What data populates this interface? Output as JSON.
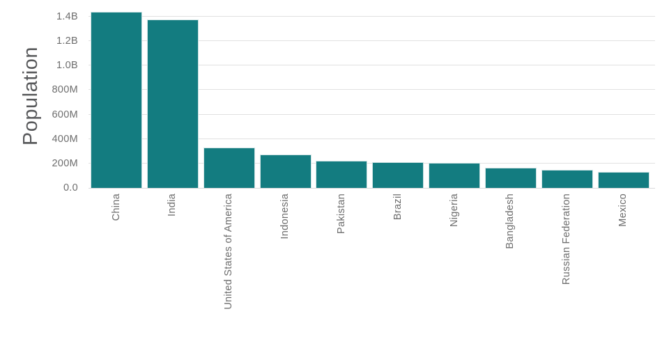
{
  "chart_data": {
    "type": "bar",
    "title": "",
    "ylabel": "Population",
    "xlabel": "",
    "categories": [
      "China",
      "India",
      "United States of America",
      "Indonesia",
      "Pakistan",
      "Brazil",
      "Nigeria",
      "Bangladesh",
      "Russian Federation",
      "Mexico"
    ],
    "series": [
      {
        "name": "Population",
        "values_millions": [
          1439,
          1380,
          331,
          273.5,
          221,
          212.5,
          206,
          164.5,
          146,
          129
        ]
      }
    ],
    "yticks": [
      {
        "value_millions": 0,
        "label": "0.0"
      },
      {
        "value_millions": 200,
        "label": "200M"
      },
      {
        "value_millions": 400,
        "label": "400M"
      },
      {
        "value_millions": 600,
        "label": "600M"
      },
      {
        "value_millions": 800,
        "label": "800M"
      },
      {
        "value_millions": 1000,
        "label": "1.0B"
      },
      {
        "value_millions": 1200,
        "label": "1.2B"
      },
      {
        "value_millions": 1400,
        "label": "1.4B"
      }
    ],
    "ylim_millions": [
      0,
      1535
    ],
    "grid": "horizontal",
    "legend": "none",
    "colors": {
      "bar": "#137c80",
      "bar_edge": "#cfe3e4",
      "gridline": "#e1e1e1",
      "axis_line": "#d9dadb",
      "tick_text": "#6d6d6d",
      "axis_title_text": "#58595b"
    }
  }
}
